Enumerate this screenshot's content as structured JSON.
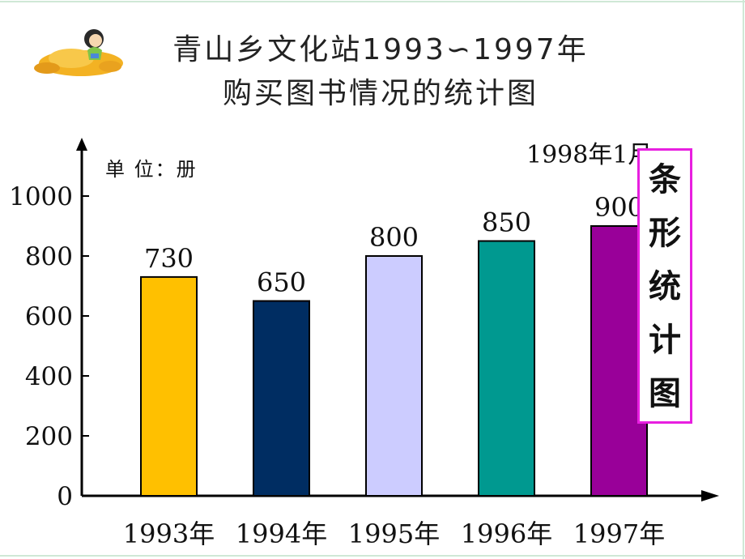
{
  "chart_data": {
    "type": "bar",
    "title_line1": "青山乡文化站1993∽1997年",
    "title_line2": "购买图书情况的统计图",
    "unit_label": "单 位：册",
    "date_note": "1998年1月",
    "categories": [
      "1993年",
      "1994年",
      "1995年",
      "1996年",
      "1997年"
    ],
    "values": [
      730,
      650,
      800,
      850,
      900
    ],
    "colors": [
      "#ffc000",
      "#002d62",
      "#ccccff",
      "#009990",
      "#990099"
    ],
    "yticks": [
      0,
      200,
      400,
      600,
      800,
      1000
    ],
    "ylim": [
      0,
      1000
    ],
    "grid": false
  },
  "side_label": [
    "条",
    "形",
    "统",
    "计",
    "图"
  ]
}
